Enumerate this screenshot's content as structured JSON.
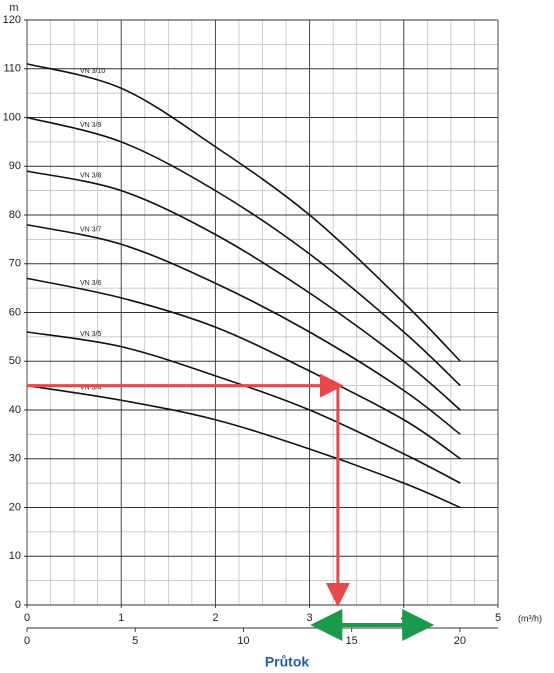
{
  "chart_data": {
    "type": "line",
    "ylabel": "m",
    "xlabel": "(m³/h)",
    "x2label": "Průtok",
    "x": [
      0,
      1,
      2,
      3,
      4,
      4.6
    ],
    "series": [
      {
        "name": "VN 3/10",
        "color": "#111111",
        "values": [
          111,
          106,
          94,
          80,
          62,
          50
        ]
      },
      {
        "name": "VN 3/9",
        "color": "#111111",
        "values": [
          100,
          95,
          85,
          72,
          56,
          45
        ]
      },
      {
        "name": "VN 3/8",
        "color": "#111111",
        "values": [
          89,
          85,
          76,
          64,
          50,
          40
        ]
      },
      {
        "name": "VN 3/7",
        "color": "#111111",
        "values": [
          78,
          74,
          66,
          56,
          44,
          35
        ]
      },
      {
        "name": "VN 3/6",
        "color": "#111111",
        "values": [
          67,
          63,
          57,
          48,
          38,
          30
        ]
      },
      {
        "name": "VN 3/5",
        "color": "#111111",
        "values": [
          56,
          53,
          47,
          40,
          31,
          25
        ]
      },
      {
        "name": "VN 3/4",
        "color": "#111111",
        "values": [
          45,
          42,
          38,
          32,
          25,
          20
        ]
      }
    ],
    "xlim": [
      0,
      5
    ],
    "xticks": [
      0,
      1,
      2,
      3,
      4,
      5
    ],
    "minor_xticks": [
      0.25,
      0.5,
      0.75,
      1.25,
      1.5,
      1.75,
      2.25,
      2.5,
      2.75,
      3.25,
      3.5,
      3.75,
      4.25,
      4.5,
      4.75
    ],
    "x2lim": [
      0,
      21.76
    ],
    "x2ticks": [
      0,
      5,
      10,
      15,
      20
    ],
    "ylim": [
      0,
      120
    ],
    "yticks": [
      0,
      10,
      20,
      30,
      40,
      50,
      60,
      70,
      80,
      90,
      100,
      110,
      120
    ],
    "minor_yticks": [
      5,
      15,
      25,
      35,
      45,
      55,
      65,
      75,
      85,
      95,
      105,
      115
    ],
    "grid": true,
    "reference": {
      "x": 3.3,
      "y": 45,
      "color": "#e8484a"
    },
    "range": {
      "x": [
        3.05,
        4.28
      ],
      "color": "#1a9a4a"
    },
    "x2label_color": "#1f5fa8"
  }
}
